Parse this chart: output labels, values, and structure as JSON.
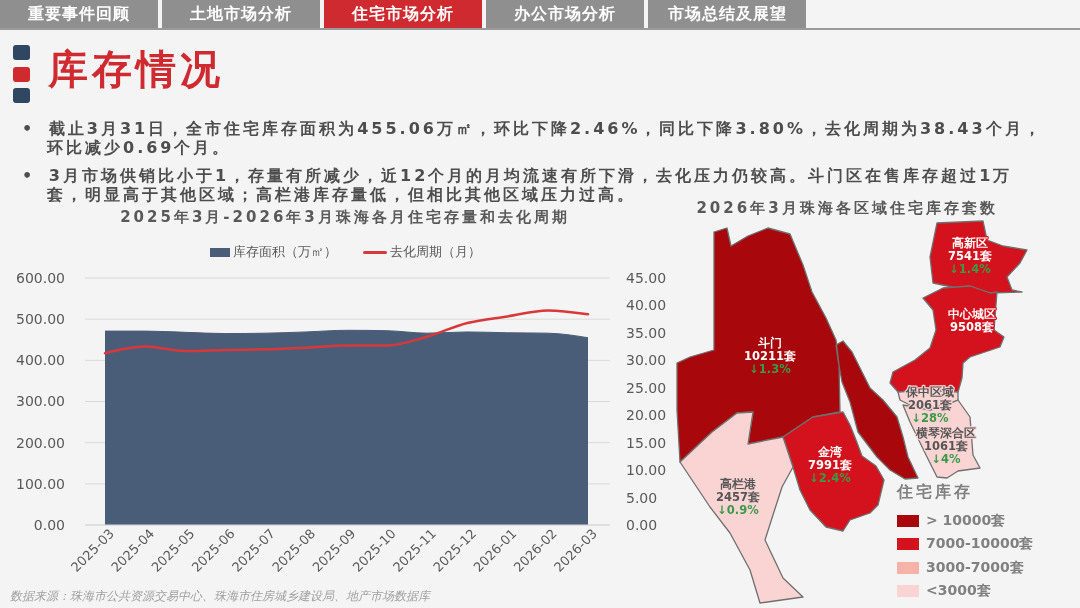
{
  "chart_data": [
    {
      "type": "area",
      "title": "2025年3月-2026年3月珠海各月住宅存量和去化周期",
      "categories": [
        "2025-03",
        "2025-04",
        "2025-05",
        "2025-06",
        "2025-07",
        "2025-08",
        "2025-09",
        "2025-10",
        "2025-11",
        "2025-12",
        "2026-01",
        "2026-02",
        "2026-03"
      ],
      "series": [
        {
          "name": "库存面积（万㎡）",
          "type": "area",
          "color": "#4a5d78",
          "values": [
            471,
            471,
            468,
            465,
            466,
            469,
            473,
            472,
            466,
            469,
            467,
            466,
            455
          ]
        },
        {
          "name": "去化周期（月）",
          "type": "line",
          "axis": "y2",
          "color": "#d9383a",
          "values": [
            31.3,
            32.5,
            31.7,
            31.9,
            32.0,
            32.3,
            32.7,
            32.7,
            34.3,
            36.8,
            38.0,
            39.1,
            38.4
          ]
        }
      ],
      "ylim": [
        0,
        600
      ],
      "yticks": [
        {
          "value": 0,
          "label": "0.00"
        },
        {
          "value": 100,
          "label": "100.00"
        },
        {
          "value": 200,
          "label": "200.00"
        },
        {
          "value": 300,
          "label": "300.00"
        },
        {
          "value": 400,
          "label": "400.00"
        },
        {
          "value": 500,
          "label": "500.00"
        },
        {
          "value": 600,
          "label": "600.00"
        }
      ],
      "y2lim": [
        0,
        45
      ],
      "y2ticks": [
        {
          "value": 0,
          "label": "0.00"
        },
        {
          "value": 5,
          "label": "5.00"
        },
        {
          "value": 10,
          "label": "10.00"
        },
        {
          "value": 15,
          "label": "15.00"
        },
        {
          "value": 20,
          "label": "20.00"
        },
        {
          "value": 25,
          "label": "25.00"
        },
        {
          "value": 30,
          "label": "30.00"
        },
        {
          "value": 35,
          "label": "35.00"
        },
        {
          "value": 40,
          "label": "40.00"
        },
        {
          "value": 45,
          "label": "45.00"
        }
      ],
      "grid": "y",
      "legend": "top",
      "annotations": [
        "重要事件回顾",
        "土地市场分析",
        "住宅市场分析",
        "办公市场分析",
        "市场总结及展望",
        "库存情况",
        "• 截止3月31日，全市住宅库存面积为455.06万㎡，环比下降2.46%，同比下降3.80%，去化周期为38.43个月，环比减少0.69个月。",
        "• 3月市场供销比小于1，存量有所减少，近12个月的月均流速有所下滑，去化压力仍较高。斗门区在售库存超过1万套，明显高于其他区域；高栏港库存量低，但相比其他区域压力过高。",
        "数据来源：珠海市公共资源交易中心、珠海市住房城乡建设局、地产市场数据库"
      ]
    },
    {
      "type": "other",
      "title": "2026年3月珠海各区域住宅库存套数",
      "categories": [
        "斗门",
        "高新区",
        "中心城区",
        "保中区域",
        "横琴深合区",
        "金湾",
        "高栏港"
      ],
      "legend_title": "住宅库存",
      "legend": "bottom right",
      "series": [
        {
          "name": "> 10000套",
          "color": "#a8070b",
          "values": [
            10211,
            null,
            null,
            null,
            null,
            null,
            null
          ],
          "value_labels": [
            "10211套",
            null,
            null,
            null,
            null,
            null,
            null
          ]
        },
        {
          "name": "7000-10000套",
          "color": "#d3121d",
          "values": [
            null,
            7541,
            9508,
            null,
            null,
            7991,
            null
          ],
          "value_labels": [
            null,
            "7541套",
            "9508套",
            null,
            null,
            "7991套",
            null
          ]
        },
        {
          "name": "3000-7000套",
          "color": "#f6b3a8",
          "values": [
            null,
            null,
            null,
            null,
            null,
            null,
            null
          ]
        },
        {
          "name": "<3000套",
          "color": "#f9d4d3",
          "values": [
            null,
            null,
            null,
            2061,
            1061,
            null,
            2457
          ],
          "value_labels": [
            null,
            null,
            null,
            "2061套",
            "1061套",
            null,
            "2457套"
          ]
        }
      ],
      "annotations": [
        {
          "text": "↓1.3%",
          "x": "斗门"
        },
        {
          "text": "↓1.4%",
          "x": "高新区"
        },
        {
          "text": "↓28%",
          "x": "保中区域"
        },
        {
          "text": "↓4%",
          "x": "横琴深合区"
        },
        {
          "text": "↓2.4%",
          "x": "金湾"
        },
        {
          "text": "↓0.9%",
          "x": "高栏港"
        }
      ]
    }
  ]
}
